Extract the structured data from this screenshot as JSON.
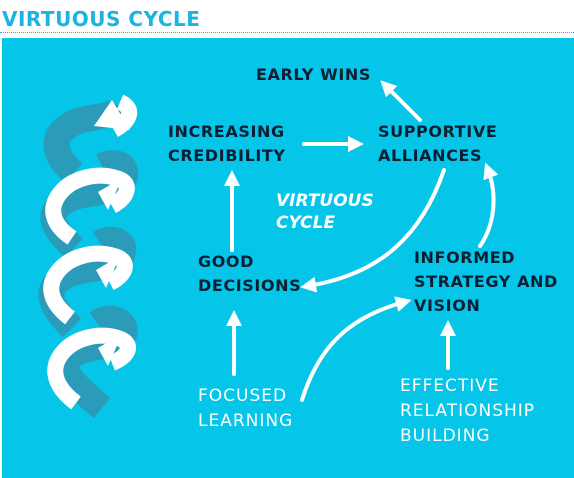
{
  "title": "VIRTUOUS CYCLE",
  "nodes": {
    "early_wins": "EARLY WINS",
    "increasing_credibility": [
      "INCREASING",
      "CREDIBILITY"
    ],
    "supportive_alliances": [
      "SUPPORTIVE",
      "ALLIANCES"
    ],
    "good_decisions": [
      "GOOD",
      "DECISIONS"
    ],
    "informed_strategy": [
      "INFORMED",
      "STRATEGY AND",
      "VISION"
    ],
    "focused_learning": [
      "FOCUSED",
      "LEARNING"
    ],
    "effective_relationship": [
      "EFFECTIVE",
      "RELATIONSHIP",
      "BUILDING"
    ]
  },
  "center_label": [
    "VIRTUOUS",
    "CYCLE"
  ],
  "colors": {
    "panel": "#05c5e8",
    "title": "#1ab4e0",
    "dark_text": "#0b1f33",
    "arrow": "#ffffff",
    "ribbon_shade": "#2a9bb8"
  },
  "icons": [
    "spiral-arrow-icon"
  ]
}
